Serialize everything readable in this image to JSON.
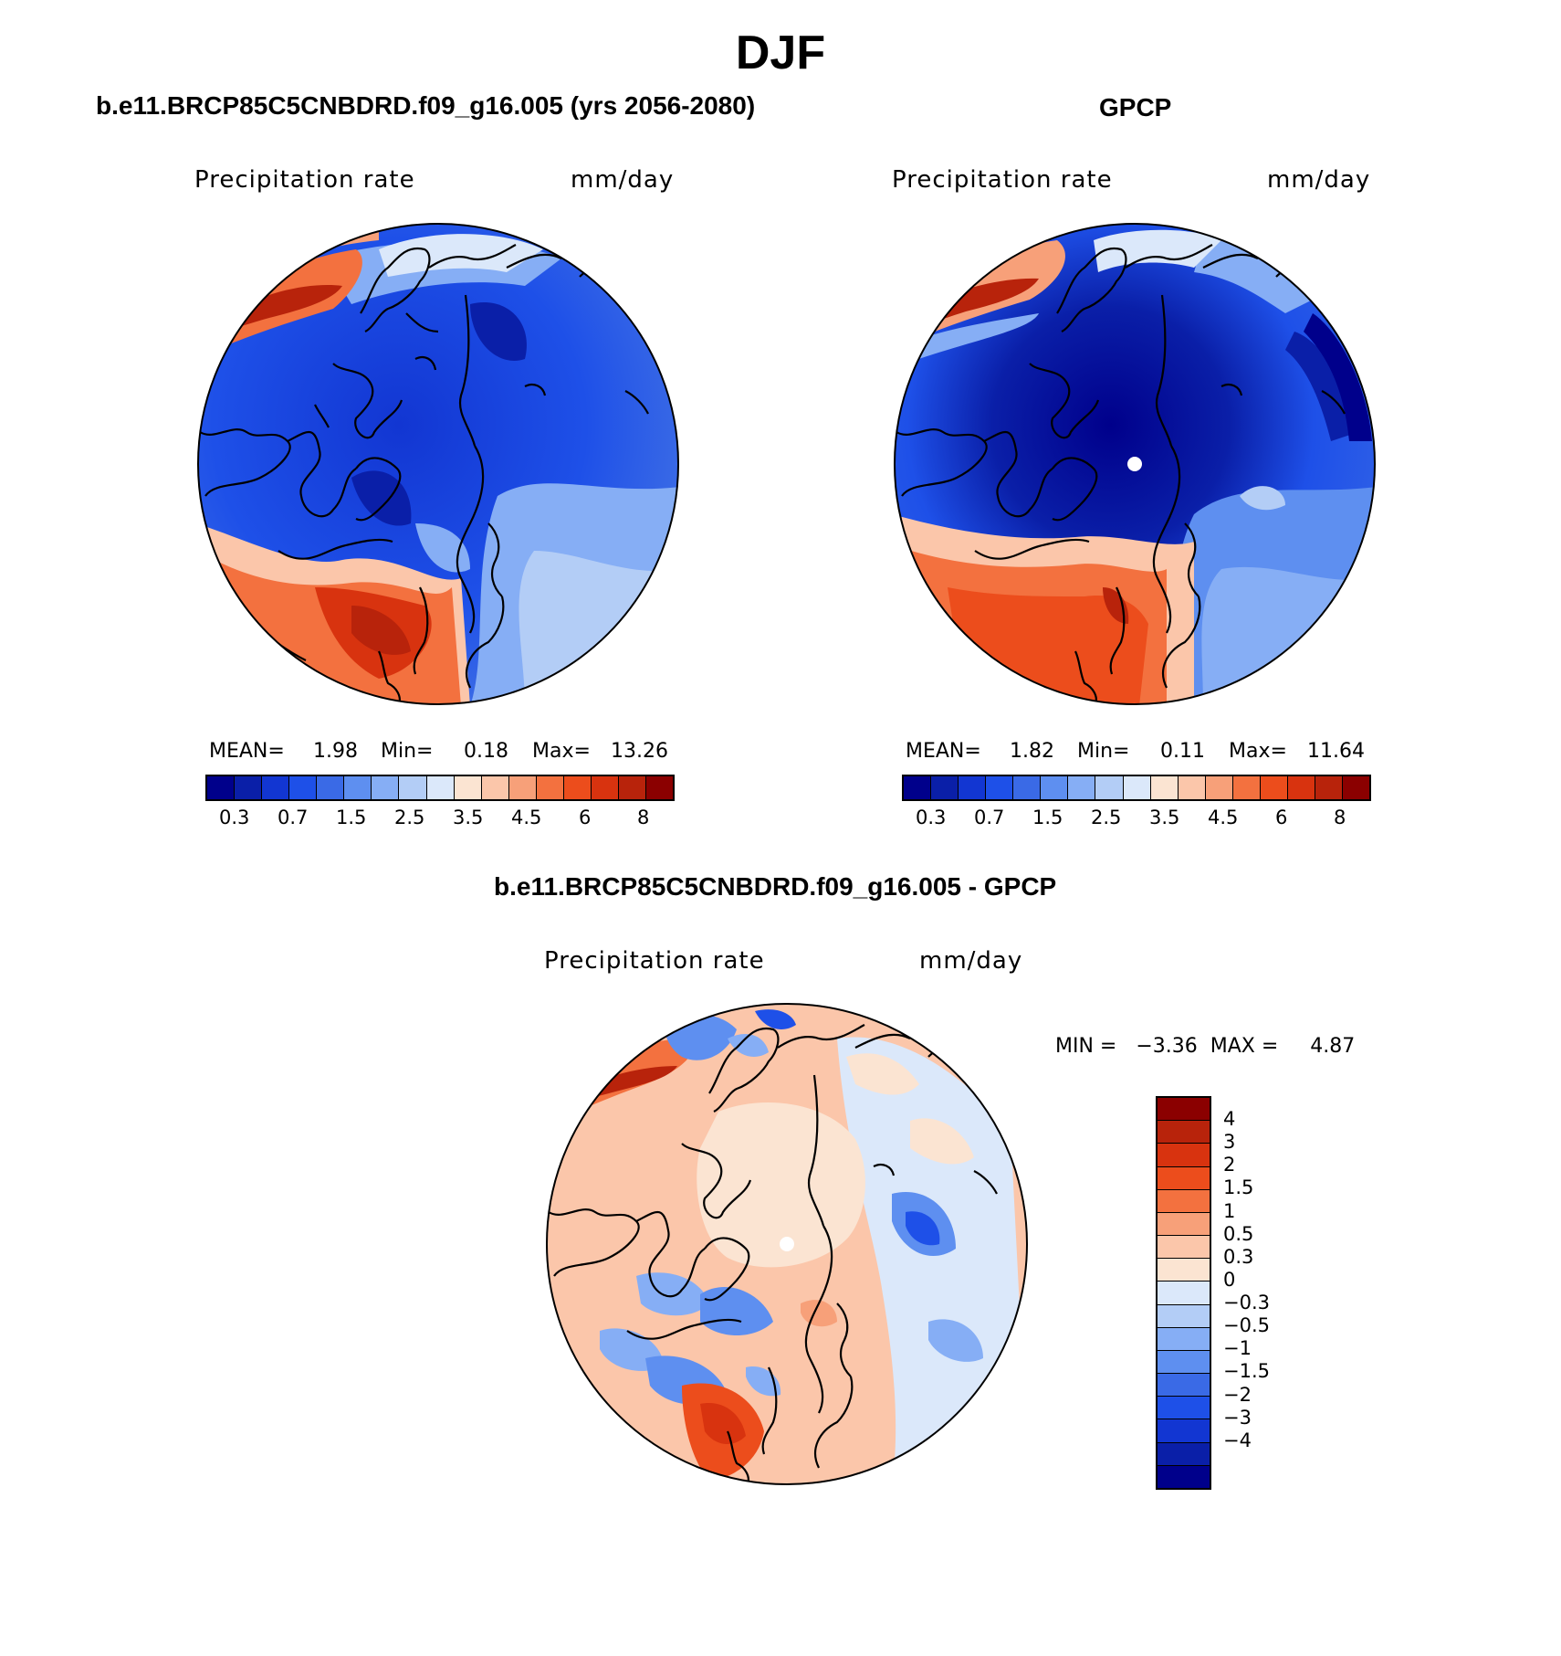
{
  "figure": {
    "season": "DJF"
  },
  "panels": [
    {
      "title": "b.e11.BRCP85C5CNBDRD.f09_g16.005 (yrs 2056-2080)",
      "variable": "Precipitation  rate",
      "units": "mm/day",
      "mean_label": "MEAN=",
      "mean": "1.98",
      "min_label": "Min=",
      "min": "0.18",
      "max_label": "Max=",
      "max": "13.26",
      "colorbar_ticks": [
        "0.3",
        "0.7",
        "1.5",
        "2.5",
        "3.5",
        "4.5",
        "6",
        "8"
      ]
    },
    {
      "title": "GPCP",
      "variable": "Precipitation  rate",
      "units": "mm/day",
      "mean_label": "MEAN=",
      "mean": "1.82",
      "min_label": "Min=",
      "min": "0.11",
      "max_label": "Max=",
      "max": "11.64",
      "colorbar_ticks": [
        "0.3",
        "0.7",
        "1.5",
        "2.5",
        "3.5",
        "4.5",
        "6",
        "8"
      ]
    },
    {
      "title": "b.e11.BRCP85C5CNBDRD.f09_g16.005 - GPCP",
      "variable": "Precipitation  rate",
      "units": "mm/day",
      "minmax_text": "MIN =   −3.36  MAX =     4.87",
      "colorbar_ticks": [
        "4",
        "3",
        "2",
        "1.5",
        "1",
        "0.5",
        "0.3",
        "0",
        "−0.3",
        "−0.5",
        "−1",
        "−1.5",
        "−2",
        "−3",
        "−4"
      ]
    }
  ],
  "colors": {
    "abs_scale": [
      "#00008b",
      "#0a1fa8",
      "#1236d2",
      "#1e50e8",
      "#3a6ae6",
      "#5e8ff0",
      "#86aef5",
      "#b3cdf6",
      "#dbe8fa",
      "#fbe4d2",
      "#fbc6aa",
      "#f7a079",
      "#f3713f",
      "#ec4d1c",
      "#d8330f",
      "#b8230b",
      "#8b0000"
    ],
    "diff_scale": [
      "#8b0000",
      "#b8230b",
      "#d8330f",
      "#ec4d1c",
      "#f3713f",
      "#f7a079",
      "#fbc6aa",
      "#fbe4d2",
      "#dbe8fa",
      "#b3cdf6",
      "#86aef5",
      "#5e8ff0",
      "#3a6ae6",
      "#1e50e8",
      "#1236d2",
      "#0a1fa8",
      "#00008b"
    ]
  }
}
